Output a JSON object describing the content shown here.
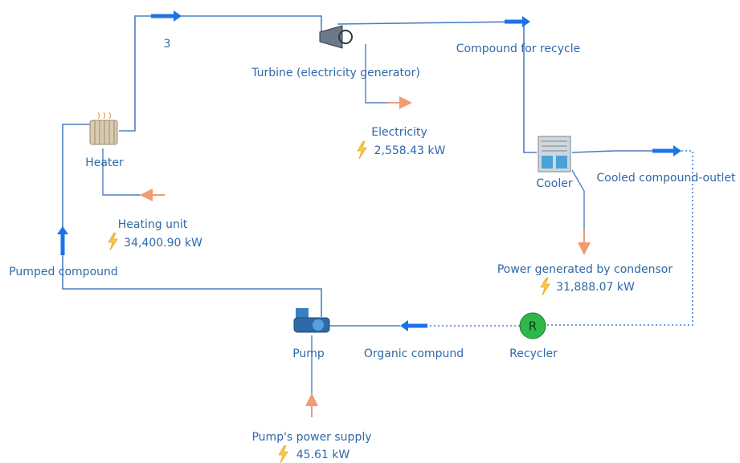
{
  "nodes": [
    {
      "label": "Heater"
    },
    {
      "label": "Turbine (electricity generator)"
    },
    {
      "label": "Cooler"
    },
    {
      "label": "Recycler",
      "symbol": "R"
    },
    {
      "label": "Pump"
    }
  ],
  "streams": [
    {
      "label": "3"
    },
    {
      "label": "Compound for recycle"
    },
    {
      "label": "Cooled compound-outlet"
    },
    {
      "label": "Organic compund"
    },
    {
      "label": "Pumped compound"
    }
  ],
  "energy": [
    {
      "label": "Electricity",
      "value": "2,558.43 kW"
    },
    {
      "label": "Heating unit",
      "value": "34,400.90 kW"
    },
    {
      "label": "Power generated by condensor",
      "value": "31,888.07 kW"
    },
    {
      "label": "Pump's power supply",
      "value": "45.61 kW"
    }
  ]
}
